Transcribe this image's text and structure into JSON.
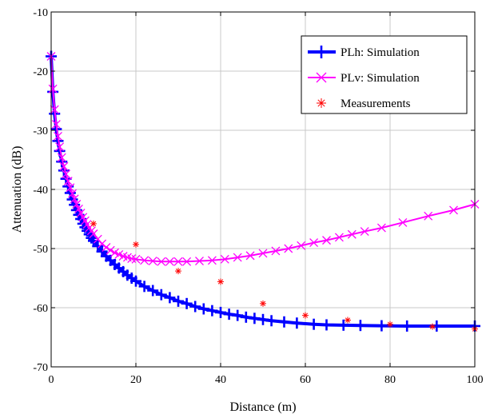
{
  "chart_data": {
    "type": "line",
    "title": "",
    "xlabel": "Distance (m)",
    "ylabel": "Attenuation (dB)",
    "xlim": [
      0,
      100
    ],
    "ylim": [
      -70,
      -10
    ],
    "xticks": [
      0,
      20,
      40,
      60,
      80,
      100
    ],
    "yticks": [
      -10,
      -20,
      -30,
      -40,
      -50,
      -60,
      -70
    ],
    "xtick_labels": [
      "0",
      "20",
      "40",
      "60",
      "80",
      "100"
    ],
    "ytick_labels": [
      "-10",
      "-20",
      "-30",
      "-40",
      "-50",
      "-60",
      "-70"
    ],
    "grid": true,
    "legend_position": "top-right",
    "series": [
      {
        "name": "PLh: Simulation",
        "color": "#0000ff",
        "marker": "plus",
        "x": [
          0,
          0.4,
          0.8,
          1.2,
          1.6,
          2,
          2.5,
          3,
          3.5,
          4,
          4.5,
          5,
          5.5,
          6,
          6.5,
          7,
          7.5,
          8,
          8.5,
          9,
          9.5,
          10,
          11,
          12,
          13,
          14,
          15,
          16,
          17,
          18,
          19,
          20,
          22,
          24,
          26,
          28,
          30,
          32,
          34,
          36,
          38,
          40,
          42,
          44,
          46,
          48,
          50,
          52,
          55,
          58,
          62,
          65,
          69,
          73,
          78,
          84,
          91,
          100
        ],
        "y": [
          -17.5,
          -23.5,
          -27.2,
          -29.8,
          -31.8,
          -33.5,
          -35.3,
          -36.8,
          -38.2,
          -39.5,
          -40.6,
          -41.7,
          -42.6,
          -43.5,
          -44.3,
          -45.0,
          -45.8,
          -46.4,
          -47.0,
          -47.6,
          -48.2,
          -48.7,
          -49.6,
          -50.5,
          -51.3,
          -52.0,
          -52.7,
          -53.3,
          -53.9,
          -54.5,
          -55.0,
          -55.5,
          -56.4,
          -57.1,
          -57.8,
          -58.3,
          -58.9,
          -59.3,
          -59.8,
          -60.2,
          -60.5,
          -60.8,
          -61.1,
          -61.3,
          -61.6,
          -61.8,
          -62.0,
          -62.2,
          -62.4,
          -62.6,
          -62.8,
          -62.9,
          -62.95,
          -63.0,
          -63.05,
          -63.1,
          -63.1,
          -63.1
        ]
      },
      {
        "name": "PLv: Simulation",
        "color": "#ff00ff",
        "marker": "x",
        "x": [
          0,
          0.4,
          0.8,
          1.2,
          1.6,
          2,
          2.5,
          3,
          3.5,
          4,
          4.5,
          5,
          5.5,
          6,
          6.5,
          7,
          7.5,
          8,
          8.5,
          9,
          9.5,
          10,
          11,
          12,
          13,
          14,
          15,
          16,
          17,
          18,
          19,
          20,
          22,
          24,
          26,
          28,
          30,
          32,
          35,
          38,
          41,
          44,
          47,
          50,
          53,
          56,
          59,
          62,
          65,
          68,
          71,
          74,
          78,
          83,
          89,
          95,
          100
        ],
        "y": [
          -17.5,
          -23.0,
          -26.5,
          -29.0,
          -31.0,
          -32.8,
          -34.6,
          -36.1,
          -37.4,
          -38.6,
          -39.7,
          -40.7,
          -41.6,
          -42.5,
          -43.3,
          -44.0,
          -44.7,
          -45.3,
          -45.9,
          -46.5,
          -47.0,
          -47.5,
          -48.4,
          -49.2,
          -49.8,
          -50.3,
          -50.7,
          -51.0,
          -51.3,
          -51.5,
          -51.7,
          -51.8,
          -52.0,
          -52.1,
          -52.2,
          -52.2,
          -52.2,
          -52.2,
          -52.1,
          -52.0,
          -51.8,
          -51.5,
          -51.2,
          -50.8,
          -50.4,
          -50.0,
          -49.5,
          -49.0,
          -48.6,
          -48.1,
          -47.6,
          -47.1,
          -46.5,
          -45.6,
          -44.5,
          -43.5,
          -42.5
        ]
      },
      {
        "name": "Measurements",
        "color": "#ff0000",
        "marker": "asterisk",
        "x": [
          10,
          20,
          30,
          40,
          50,
          60,
          70,
          80,
          90,
          100
        ],
        "y": [
          -45.8,
          -49.3,
          -53.8,
          -55.6,
          -59.3,
          -61.3,
          -62.1,
          -62.8,
          -63.2,
          -63.6
        ]
      }
    ]
  }
}
